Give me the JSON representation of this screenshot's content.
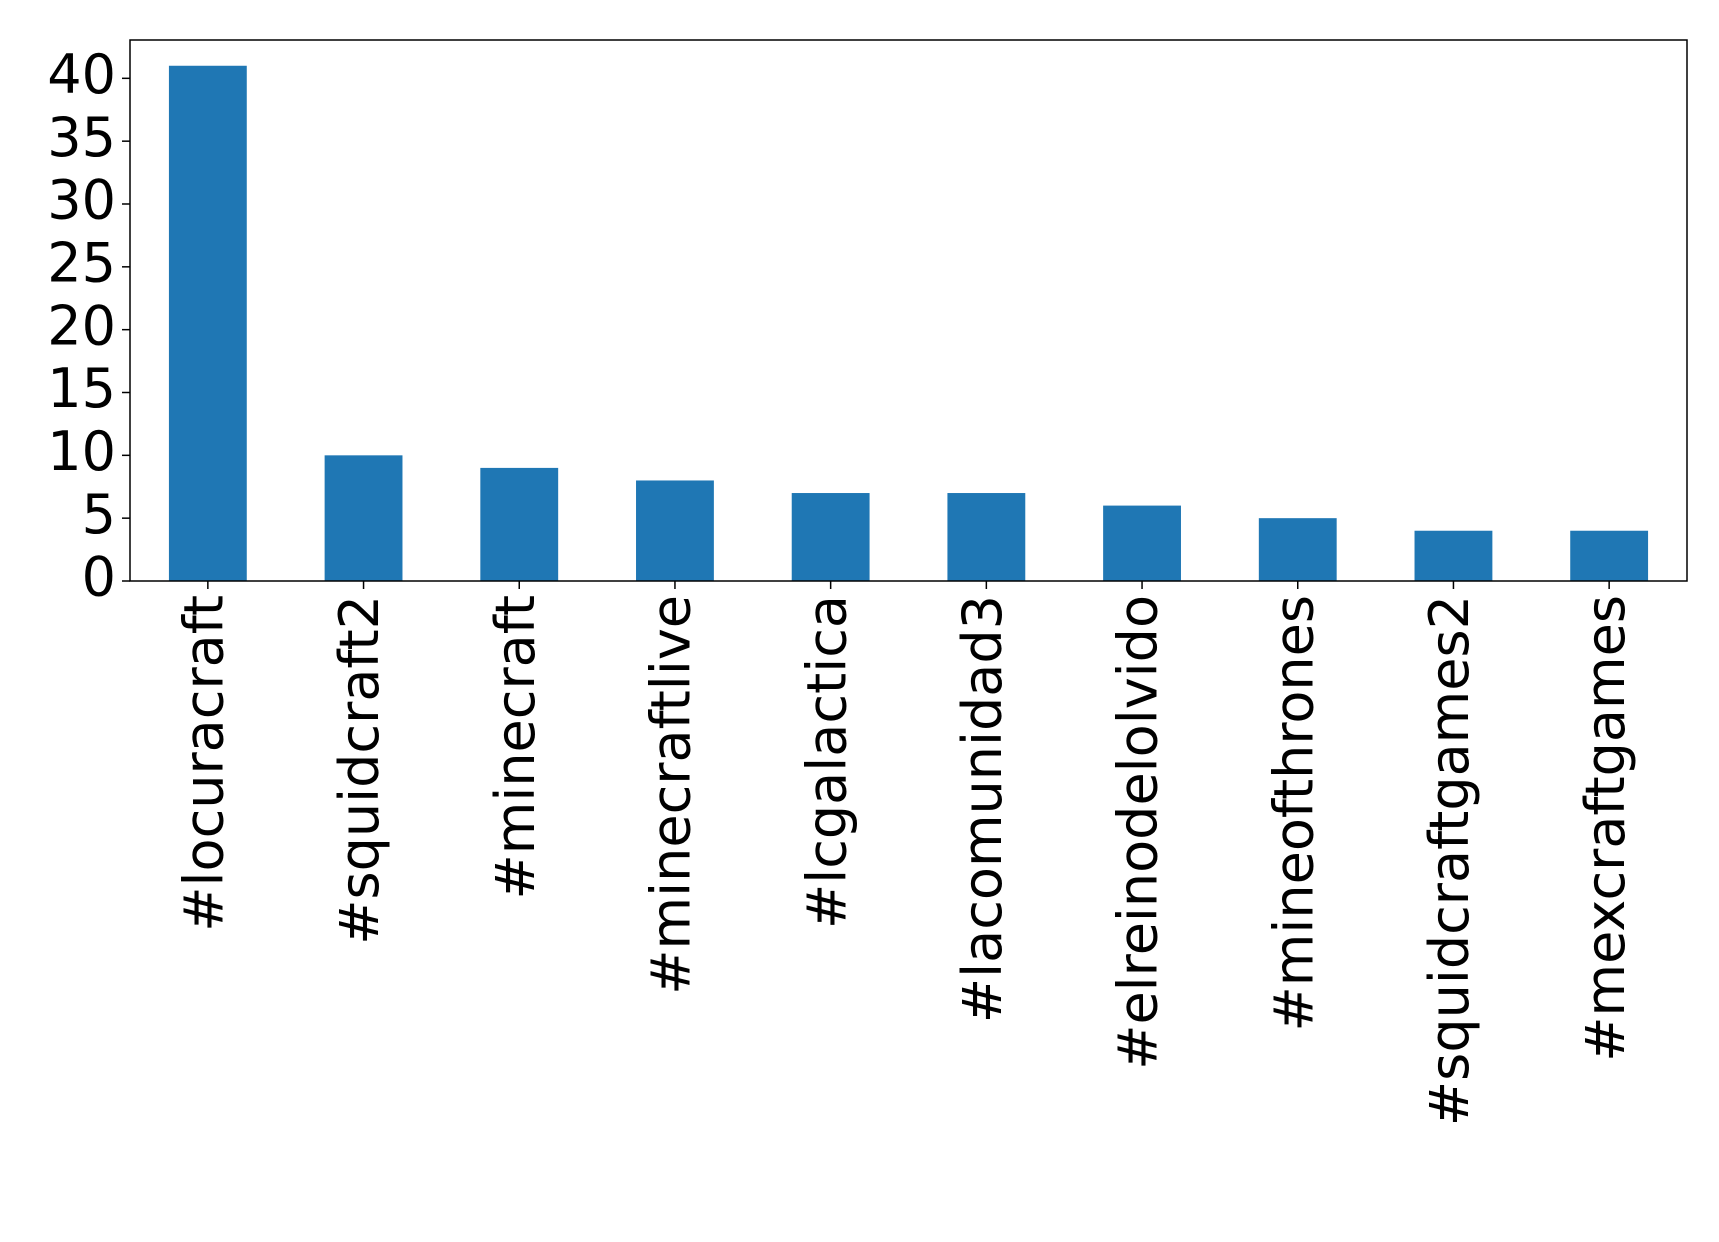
{
  "chart_data": {
    "type": "bar",
    "categories": [
      "#locuracraft",
      "#squidcraft2",
      "#minecraft",
      "#minecraftlive",
      "#lcgalactica",
      "#lacomunidad3",
      "#elreinodelolvido",
      "#mineofthrones",
      "#squidcraftgames2",
      "#mexcraftgames"
    ],
    "values": [
      41,
      10,
      9,
      8,
      7,
      7,
      6,
      5,
      4,
      4
    ],
    "color": "#1f77b4",
    "ylim": [
      0,
      43.05
    ],
    "yticks": [
      0,
      5,
      10,
      15,
      20,
      25,
      30,
      35,
      40
    ],
    "grid": false
  }
}
